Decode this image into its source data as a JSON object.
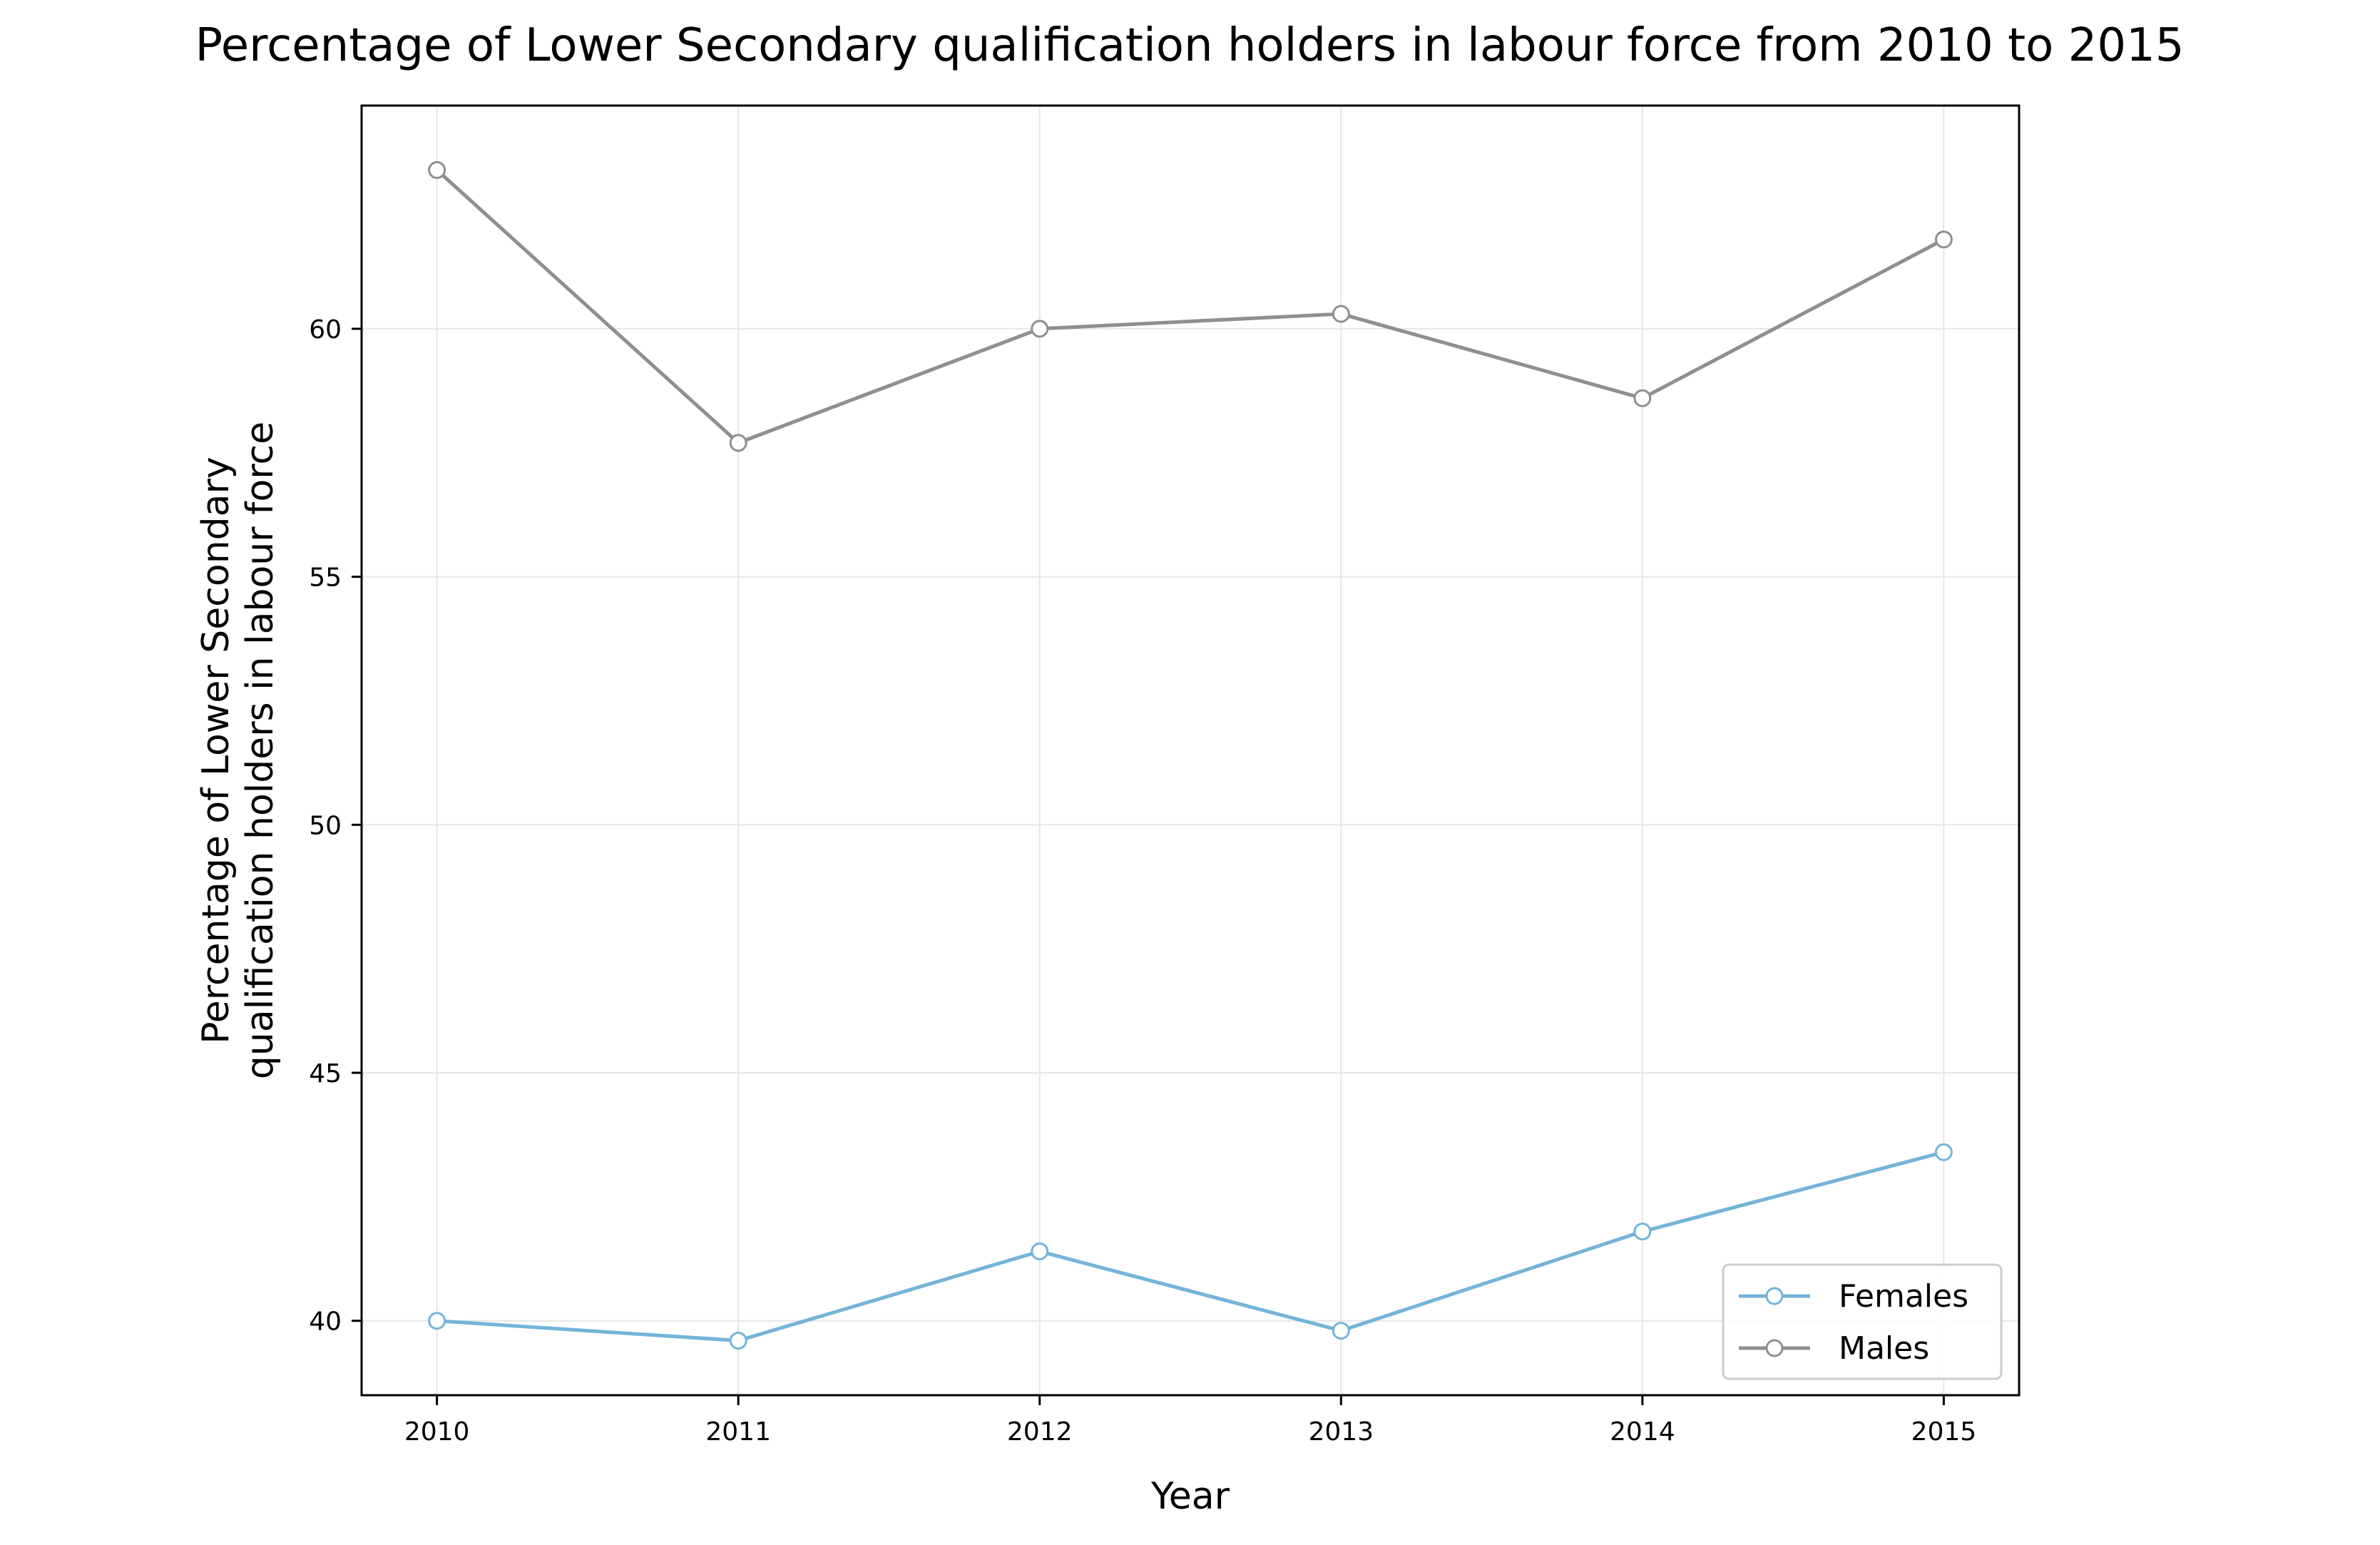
{
  "chart_data": {
    "type": "line",
    "title": "Percentage of Lower Secondary qualification holders in labour force from 2010 to 2015",
    "xlabel": "Year",
    "ylabel_lines": [
      "Percentage of Lower Secondary",
      "qualification holders in labour force"
    ],
    "x": [
      2010,
      2011,
      2012,
      2013,
      2014,
      2015
    ],
    "x_tick_labels": [
      "2010",
      "2011",
      "2012",
      "2013",
      "2014",
      "2015"
    ],
    "xlim": [
      2009.75,
      2015.25
    ],
    "ylim": [
      38.5,
      64.5
    ],
    "y_ticks": [
      40,
      45,
      50,
      55,
      60
    ],
    "y_tick_labels": [
      "40",
      "45",
      "50",
      "55",
      "60"
    ],
    "grid": true,
    "legend_position": "lower-right",
    "series": [
      {
        "name": "Females",
        "color": "#74b4d8",
        "values": [
          40.0,
          39.6,
          41.4,
          39.8,
          41.8,
          43.4
        ]
      },
      {
        "name": "Males",
        "color": "#8f8f8f",
        "values": [
          63.2,
          57.7,
          60.0,
          60.3,
          58.6,
          61.8
        ]
      }
    ]
  }
}
